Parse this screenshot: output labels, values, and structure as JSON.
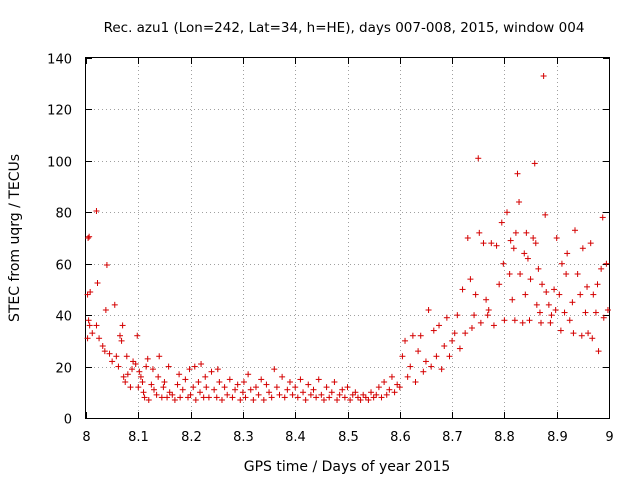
{
  "chart_data": {
    "type": "scatter",
    "title": "Rec. azu1 (Lon=242, Lat=34, h=HE), days 007-008, 2015, window 004",
    "xlabel": "GPS time / Days of year 2015",
    "ylabel": "STEC from uqrg / TECUs",
    "xlim": [
      8,
      9
    ],
    "ylim": [
      0,
      140
    ],
    "xticks": [
      "8",
      "8.1",
      "8.2",
      "8.3",
      "8.4",
      "8.5",
      "8.6",
      "8.7",
      "8.8",
      "8.9",
      "9"
    ],
    "yticks": [
      "0",
      "20",
      "40",
      "60",
      "80",
      "100",
      "120",
      "140"
    ],
    "grid": true,
    "marker": "+",
    "color": "#d40000",
    "series": [
      {
        "name": "STEC",
        "points": [
          [
            8.003,
            48
          ],
          [
            8.004,
            70
          ],
          [
            8.006,
            70.5
          ],
          [
            8.008,
            49
          ],
          [
            8.003,
            31
          ],
          [
            8.005,
            38
          ],
          [
            8.007,
            36
          ],
          [
            8.012,
            33
          ],
          [
            8.02,
            80.5
          ],
          [
            8.022,
            52.5
          ],
          [
            8.02,
            36
          ],
          [
            8.025,
            31
          ],
          [
            8.032,
            28
          ],
          [
            8.036,
            26
          ],
          [
            8.04,
            59.5
          ],
          [
            8.038,
            42
          ],
          [
            8.045,
            25
          ],
          [
            8.05,
            22
          ],
          [
            8.055,
            44
          ],
          [
            8.058,
            24
          ],
          [
            8.062,
            20
          ],
          [
            8.065,
            32
          ],
          [
            8.068,
            30
          ],
          [
            8.07,
            36
          ],
          [
            8.072,
            16
          ],
          [
            8.075,
            14
          ],
          [
            8.078,
            24
          ],
          [
            8.08,
            17
          ],
          [
            8.085,
            12
          ],
          [
            8.088,
            19
          ],
          [
            8.09,
            22
          ],
          [
            8.095,
            21
          ],
          [
            8.098,
            32
          ],
          [
            8.1,
            12
          ],
          [
            8.102,
            18
          ],
          [
            8.105,
            16
          ],
          [
            8.108,
            14
          ],
          [
            8.11,
            10
          ],
          [
            8.112,
            8
          ],
          [
            8.115,
            20
          ],
          [
            8.118,
            23
          ],
          [
            8.12,
            7
          ],
          [
            8.125,
            13
          ],
          [
            8.128,
            19
          ],
          [
            8.13,
            11
          ],
          [
            8.135,
            9
          ],
          [
            8.138,
            16
          ],
          [
            8.14,
            24
          ],
          [
            8.145,
            8
          ],
          [
            8.148,
            12
          ],
          [
            8.15,
            14
          ],
          [
            8.155,
            8
          ],
          [
            8.158,
            20
          ],
          [
            8.16,
            10
          ],
          [
            8.165,
            9
          ],
          [
            8.17,
            7
          ],
          [
            8.175,
            13
          ],
          [
            8.178,
            17
          ],
          [
            8.18,
            8
          ],
          [
            8.185,
            11
          ],
          [
            8.19,
            15
          ],
          [
            8.195,
            8
          ],
          [
            8.198,
            19
          ],
          [
            8.2,
            9
          ],
          [
            8.205,
            12
          ],
          [
            8.208,
            20
          ],
          [
            8.21,
            7
          ],
          [
            8.215,
            14
          ],
          [
            8.218,
            10
          ],
          [
            8.22,
            21
          ],
          [
            8.225,
            8
          ],
          [
            8.228,
            16
          ],
          [
            8.23,
            12
          ],
          [
            8.235,
            8
          ],
          [
            8.24,
            18
          ],
          [
            8.245,
            11
          ],
          [
            8.25,
            8
          ],
          [
            8.252,
            19
          ],
          [
            8.255,
            14
          ],
          [
            8.26,
            7
          ],
          [
            8.265,
            12
          ],
          [
            8.27,
            9
          ],
          [
            8.275,
            15
          ],
          [
            8.28,
            8
          ],
          [
            8.285,
            11
          ],
          [
            8.29,
            13
          ],
          [
            8.295,
            7
          ],
          [
            8.3,
            10
          ],
          [
            8.302,
            14
          ],
          [
            8.305,
            8
          ],
          [
            8.31,
            17
          ],
          [
            8.315,
            11
          ],
          [
            8.32,
            7
          ],
          [
            8.325,
            12
          ],
          [
            8.33,
            9
          ],
          [
            8.335,
            15
          ],
          [
            8.34,
            7
          ],
          [
            8.345,
            13
          ],
          [
            8.35,
            10
          ],
          [
            8.355,
            8
          ],
          [
            8.36,
            19
          ],
          [
            8.365,
            12
          ],
          [
            8.37,
            9
          ],
          [
            8.375,
            16
          ],
          [
            8.38,
            8
          ],
          [
            8.385,
            11
          ],
          [
            8.39,
            14
          ],
          [
            8.395,
            9
          ],
          [
            8.4,
            12
          ],
          [
            8.405,
            8
          ],
          [
            8.41,
            15
          ],
          [
            8.415,
            10
          ],
          [
            8.42,
            7
          ],
          [
            8.425,
            13
          ],
          [
            8.43,
            9
          ],
          [
            8.435,
            11
          ],
          [
            8.44,
            8
          ],
          [
            8.445,
            15
          ],
          [
            8.45,
            9
          ],
          [
            8.455,
            7
          ],
          [
            8.46,
            12
          ],
          [
            8.465,
            8
          ],
          [
            8.47,
            10
          ],
          [
            8.475,
            14
          ],
          [
            8.48,
            7
          ],
          [
            8.485,
            9
          ],
          [
            8.49,
            11
          ],
          [
            8.495,
            8
          ],
          [
            8.5,
            12
          ],
          [
            8.505,
            7
          ],
          [
            8.51,
            9
          ],
          [
            8.515,
            10
          ],
          [
            8.52,
            8
          ],
          [
            8.525,
            7
          ],
          [
            8.53,
            9
          ],
          [
            8.535,
            8
          ],
          [
            8.54,
            7
          ],
          [
            8.545,
            10
          ],
          [
            8.55,
            8
          ],
          [
            8.555,
            9
          ],
          [
            8.56,
            12
          ],
          [
            8.565,
            8
          ],
          [
            8.57,
            14
          ],
          [
            8.575,
            9
          ],
          [
            8.58,
            11
          ],
          [
            8.585,
            16
          ],
          [
            8.59,
            10
          ],
          [
            8.595,
            13
          ],
          [
            8.6,
            12
          ],
          [
            8.605,
            24
          ],
          [
            8.61,
            30
          ],
          [
            8.615,
            16
          ],
          [
            8.62,
            20
          ],
          [
            8.625,
            32
          ],
          [
            8.63,
            14
          ],
          [
            8.635,
            26
          ],
          [
            8.64,
            32
          ],
          [
            8.645,
            18
          ],
          [
            8.65,
            22
          ],
          [
            8.655,
            42
          ],
          [
            8.66,
            20
          ],
          [
            8.665,
            34
          ],
          [
            8.67,
            24
          ],
          [
            8.675,
            36
          ],
          [
            8.68,
            19
          ],
          [
            8.685,
            28
          ],
          [
            8.69,
            39
          ],
          [
            8.695,
            24
          ],
          [
            8.7,
            30
          ],
          [
            8.705,
            33
          ],
          [
            8.71,
            40
          ],
          [
            8.715,
            27
          ],
          [
            8.72,
            50
          ],
          [
            8.725,
            33
          ],
          [
            8.73,
            70
          ],
          [
            8.735,
            54
          ],
          [
            8.738,
            35
          ],
          [
            8.742,
            40
          ],
          [
            8.745,
            48
          ],
          [
            8.75,
            101
          ],
          [
            8.752,
            72
          ],
          [
            8.755,
            37
          ],
          [
            8.76,
            68
          ],
          [
            8.765,
            46
          ],
          [
            8.768,
            40
          ],
          [
            8.77,
            42
          ],
          [
            8.775,
            68
          ],
          [
            8.78,
            36
          ],
          [
            8.785,
            67
          ],
          [
            8.79,
            52
          ],
          [
            8.795,
            76
          ],
          [
            8.798,
            60
          ],
          [
            8.8,
            38
          ],
          [
            8.805,
            80
          ],
          [
            8.81,
            56
          ],
          [
            8.812,
            69
          ],
          [
            8.815,
            46
          ],
          [
            8.818,
            66
          ],
          [
            8.82,
            38
          ],
          [
            8.822,
            72
          ],
          [
            8.825,
            95
          ],
          [
            8.828,
            84
          ],
          [
            8.83,
            56
          ],
          [
            8.835,
            37
          ],
          [
            8.838,
            64
          ],
          [
            8.84,
            48
          ],
          [
            8.842,
            72
          ],
          [
            8.845,
            62
          ],
          [
            8.848,
            38
          ],
          [
            8.85,
            54
          ],
          [
            8.855,
            70
          ],
          [
            8.858,
            99
          ],
          [
            8.86,
            68
          ],
          [
            8.862,
            44
          ],
          [
            8.865,
            58
          ],
          [
            8.868,
            41
          ],
          [
            8.87,
            37
          ],
          [
            8.872,
            52
          ],
          [
            8.875,
            133
          ],
          [
            8.878,
            79
          ],
          [
            8.88,
            49
          ],
          [
            8.885,
            44
          ],
          [
            8.888,
            37
          ],
          [
            8.89,
            40
          ],
          [
            8.895,
            50
          ],
          [
            8.898,
            42
          ],
          [
            8.9,
            70
          ],
          [
            8.905,
            48
          ],
          [
            8.908,
            34
          ],
          [
            8.91,
            60
          ],
          [
            8.915,
            41
          ],
          [
            8.918,
            56
          ],
          [
            8.92,
            64
          ],
          [
            8.925,
            38
          ],
          [
            8.93,
            45
          ],
          [
            8.932,
            33
          ],
          [
            8.935,
            73
          ],
          [
            8.94,
            56
          ],
          [
            8.945,
            48
          ],
          [
            8.948,
            32
          ],
          [
            8.95,
            66
          ],
          [
            8.955,
            41
          ],
          [
            8.958,
            51
          ],
          [
            8.96,
            33
          ],
          [
            8.965,
            68
          ],
          [
            8.968,
            31
          ],
          [
            8.97,
            48
          ],
          [
            8.975,
            41
          ],
          [
            8.978,
            52
          ],
          [
            8.98,
            26
          ],
          [
            8.985,
            58
          ],
          [
            8.988,
            78
          ],
          [
            8.99,
            39
          ],
          [
            8.995,
            60
          ],
          [
            8.998,
            42
          ]
        ]
      }
    ]
  }
}
